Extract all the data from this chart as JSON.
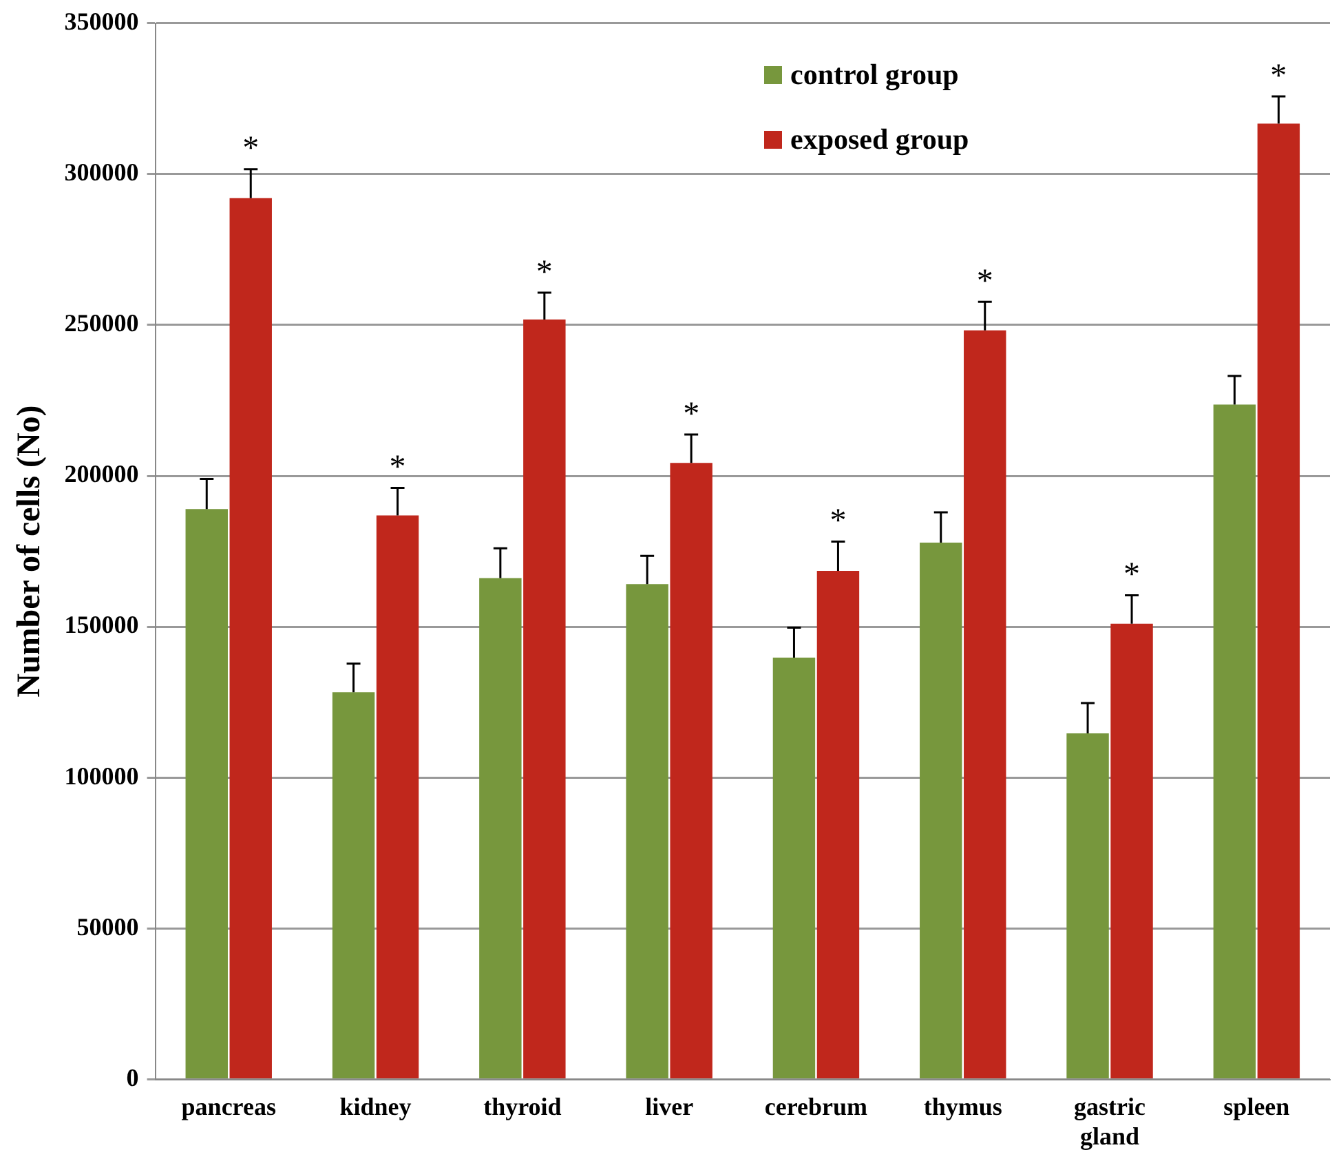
{
  "chart_data": {
    "type": "bar",
    "ylabel": "Number of cells (No)",
    "categories": [
      "pancreas",
      "kidney",
      "thyroid",
      "liver",
      "cerebrum",
      "thymus",
      "gastric gland",
      "spleen"
    ],
    "series": [
      {
        "name": "control group",
        "color": "#77973d",
        "values": [
          189000,
          128300,
          166100,
          164100,
          139800,
          177900,
          114700,
          223600
        ],
        "errors": [
          [
            189000,
            199000
          ],
          [
            128300,
            137800
          ],
          [
            166100,
            176000
          ],
          [
            164100,
            173500
          ],
          [
            139800,
            149700
          ],
          [
            177900,
            187900
          ],
          [
            114700,
            124700
          ],
          [
            223600,
            233100
          ]
        ]
      },
      {
        "name": "exposed group",
        "color": "#c0271c",
        "values": [
          292000,
          186900,
          251800,
          204300,
          168500,
          248200,
          151000,
          316700
        ],
        "errors": [
          [
            292000,
            301600
          ],
          [
            186900,
            196000
          ],
          [
            251800,
            260700
          ],
          [
            204300,
            213700
          ],
          [
            168500,
            178200
          ],
          [
            248200,
            257700
          ],
          [
            151000,
            160400
          ],
          [
            316700,
            325700
          ]
        ]
      }
    ],
    "annotations": [
      {
        "text": "*",
        "x": "pancreas",
        "y": 292000
      },
      {
        "text": "*",
        "x": "kidney",
        "y": 186900
      },
      {
        "text": "*",
        "x": "thyroid",
        "y": 251800
      },
      {
        "text": "*",
        "x": "liver",
        "y": 204300
      },
      {
        "text": "*",
        "x": "cerebrum",
        "y": 168500
      },
      {
        "text": "*",
        "x": "thymus",
        "y": 248200
      },
      {
        "text": "*",
        "x": "gastric gland",
        "y": 151000
      },
      {
        "text": "*",
        "x": "spleen",
        "y": 316700
      }
    ],
    "ylim": [
      0,
      350000
    ],
    "yticks": [
      0,
      50000,
      100000,
      150000,
      200000,
      250000,
      300000,
      350000
    ],
    "grid": "y",
    "legend": "top right"
  }
}
